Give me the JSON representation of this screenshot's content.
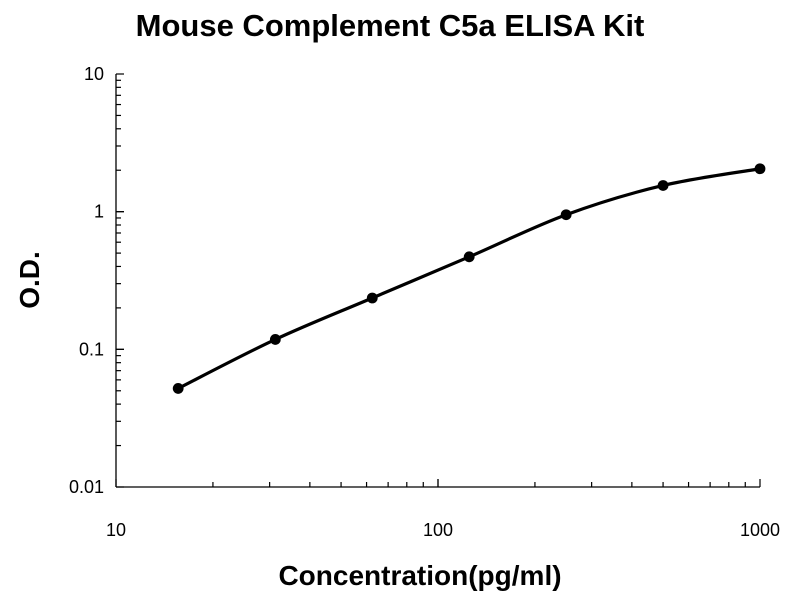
{
  "chart_data": {
    "type": "scatter",
    "title": "Mouse Complement C5a ELISA Kit",
    "xlabel": "Concentration(pg/ml)",
    "ylabel": "O.D.",
    "xscale": "log",
    "yscale": "log",
    "xlim": [
      10,
      1000
    ],
    "ylim": [
      0.01,
      10
    ],
    "x_ticks": [
      "10",
      "100",
      "1000"
    ],
    "y_ticks": [
      "0.01",
      "0.1",
      "1",
      "10"
    ],
    "grid": false,
    "legend": "none",
    "series": [
      {
        "x": [
          15.6,
          31.25,
          62.5,
          125,
          250,
          500,
          1000
        ],
        "y": [
          0.052,
          0.118,
          0.236,
          0.47,
          0.95,
          1.55,
          2.05
        ],
        "marker": "circle",
        "fit_line": "smooth curve"
      }
    ],
    "colors": {
      "line": "#000000",
      "points": "#000000",
      "background": "#ffffff"
    }
  }
}
